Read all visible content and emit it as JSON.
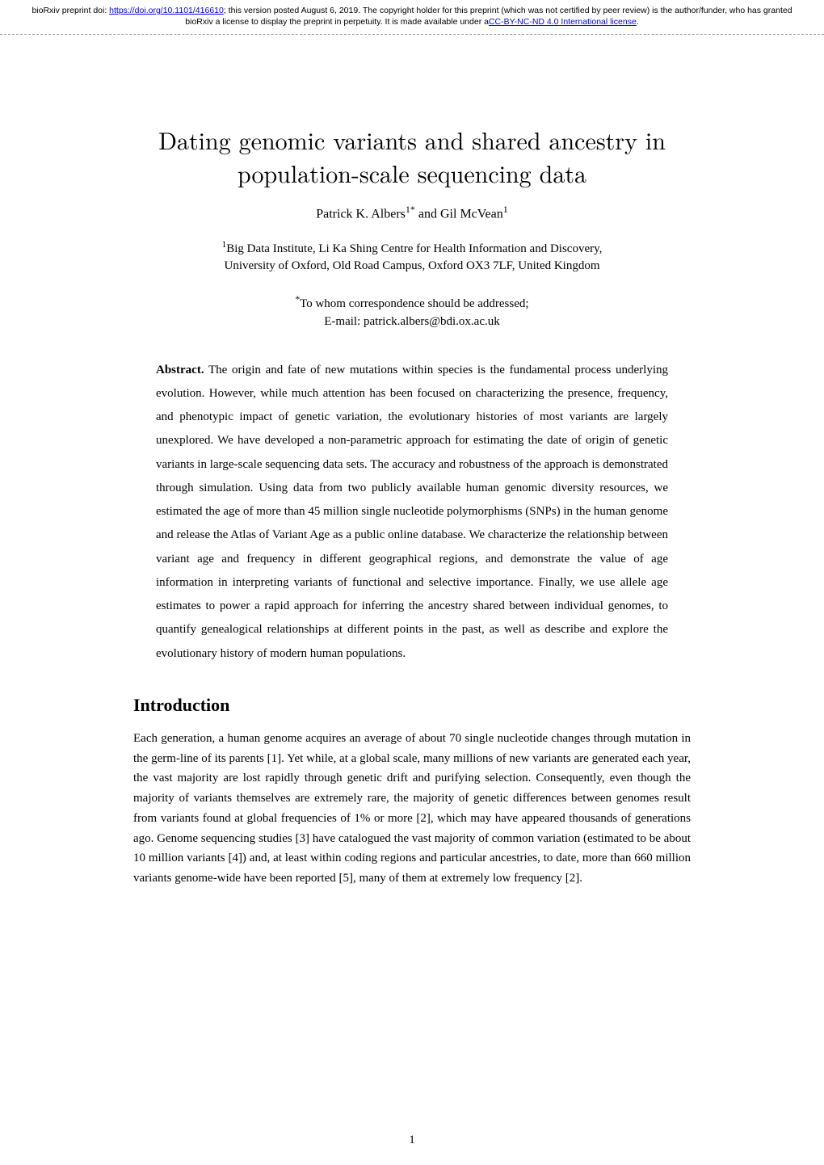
{
  "banner": {
    "prefix": "bioRxiv preprint doi: ",
    "doi_url": "https://doi.org/10.1101/416610",
    "mid": "; this version posted August 6, 2019. The copyright holder for this preprint (which was not certified by peer review) is the author/funder, who has granted bioRxiv a license to display the preprint in perpetuity. It is made available under a",
    "license": "CC-BY-NC-ND 4.0 International license",
    "suffix": "."
  },
  "title_line1": "Dating genomic variants and shared ancestry in",
  "title_line2": "population-scale sequencing data",
  "authors": "Patrick K. Albers",
  "authors_sup": "1*",
  "authors_and": " and Gil McVean",
  "authors_sup2": "1",
  "affil_sup": "1",
  "affil_l1": "Big Data Institute, Li Ka Shing Centre for Health Information and Discovery,",
  "affil_l2": "University of Oxford, Old Road Campus, Oxford OX3 7LF, United Kingdom",
  "corr_sup": "*",
  "corr_l1": "To whom correspondence should be addressed;",
  "corr_l2": "E-mail: patrick.albers@bdi.ox.ac.uk",
  "abstract_label": "Abstract.",
  "abstract_text": " The origin and fate of new mutations within species is the fundamental process underlying evolution. However, while much attention has been focused on characterizing the presence, frequency, and phenotypic impact of genetic variation, the evolutionary histories of most variants are largely unexplored. We have developed a non-parametric approach for estimating the date of origin of genetic variants in large-scale sequencing data sets. The accuracy and robustness of the approach is demonstrated through simulation. Using data from two publicly available human genomic diversity resources, we estimated the age of more than 45 million single nucleotide polymorphisms (SNPs) in the human genome and release the Atlas of Variant Age as a public online database. We characterize the relationship between variant age and frequency in different geographical regions, and demonstrate the value of age information in interpreting variants of functional and selective importance. Finally, we use allele age estimates to power a rapid approach for inferring the ancestry shared between individual genomes, to quantify genealogical relationships at different points in the past, as well as describe and explore the evolutionary history of modern human populations.",
  "section": "Introduction",
  "body": "Each generation, a human genome acquires an average of about 70 single nucleotide changes through mutation in the germ-line of its parents [1]. Yet while, at a global scale, many millions of new variants are generated each year, the vast majority are lost rapidly through genetic drift and purifying selection. Consequently, even though the majority of variants themselves are extremely rare, the majority of genetic differences between genomes result from variants found at global frequencies of 1% or more [2], which may have appeared thousands of generations ago. Genome sequencing studies [3] have catalogued the vast majority of common variation (estimated to be about 10 million variants [4]) and, at least within coding regions and particular ancestries, to date, more than 660 million variants genome-wide have been reported [5], many of them at extremely low frequency [2].",
  "pagenum": "1"
}
